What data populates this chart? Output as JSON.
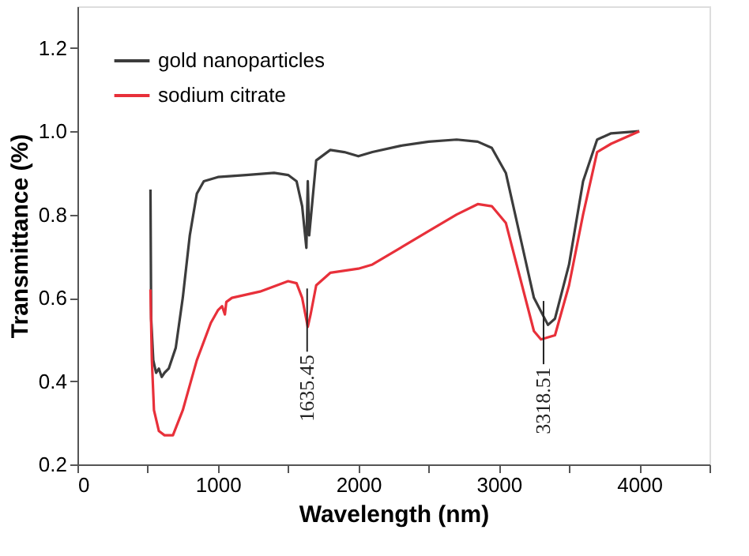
{
  "chart_data": {
    "type": "line",
    "xlabel": "Wavelength (nm)",
    "ylabel": "Transmittance (%)",
    "xlim": [
      0,
      4500
    ],
    "ylim": [
      0.2,
      1.3
    ],
    "xticks": [
      0,
      {
        "value": 500,
        "label": null
      },
      1000,
      {
        "value": 1500,
        "label": null
      },
      2000,
      {
        "value": 2500,
        "label": null
      },
      3000,
      {
        "value": 3500,
        "label": null
      },
      4000,
      {
        "value": 4500,
        "label": null
      }
    ],
    "yticks": [
      0.2,
      0.4,
      0.6,
      0.8,
      {
        "value": 1,
        "label": "1.0"
      },
      1.2
    ],
    "grid": false,
    "legend": "top left",
    "marker": "none",
    "line_style": "solid",
    "series": [
      {
        "name": "gold nanoparticles",
        "color": "#3c3c3c",
        "x": [
          520,
          525,
          540,
          560,
          580,
          600,
          620,
          650,
          700,
          750,
          800,
          850,
          900,
          1000,
          1200,
          1400,
          1500,
          1560,
          1600,
          1630,
          1640,
          1650,
          1700,
          1800,
          1900,
          2000,
          2100,
          2300,
          2500,
          2700,
          2850,
          2950,
          3050,
          3150,
          3250,
          3350,
          3400,
          3500,
          3600,
          3700,
          3800,
          4000
        ],
        "values": [
          0.86,
          0.55,
          0.45,
          0.42,
          0.43,
          0.41,
          0.42,
          0.43,
          0.48,
          0.6,
          0.75,
          0.85,
          0.88,
          0.89,
          0.895,
          0.9,
          0.895,
          0.88,
          0.82,
          0.72,
          0.88,
          0.75,
          0.93,
          0.955,
          0.95,
          0.94,
          0.95,
          0.965,
          0.975,
          0.98,
          0.975,
          0.96,
          0.9,
          0.75,
          0.6,
          0.535,
          0.55,
          0.68,
          0.88,
          0.98,
          0.995,
          1.0
        ]
      },
      {
        "name": "sodium citrate",
        "color": "#e8303a",
        "x": [
          520,
          530,
          545,
          580,
          620,
          680,
          750,
          850,
          950,
          1000,
          1030,
          1050,
          1060,
          1100,
          1300,
          1500,
          1560,
          1600,
          1640,
          1660,
          1700,
          1800,
          2000,
          2100,
          2300,
          2500,
          2700,
          2850,
          2950,
          3050,
          3150,
          3250,
          3300,
          3400,
          3500,
          3600,
          3700,
          3800,
          4000
        ],
        "values": [
          0.62,
          0.45,
          0.33,
          0.28,
          0.27,
          0.27,
          0.33,
          0.45,
          0.54,
          0.57,
          0.58,
          0.56,
          0.59,
          0.6,
          0.615,
          0.64,
          0.635,
          0.6,
          0.53,
          0.56,
          0.63,
          0.66,
          0.67,
          0.68,
          0.72,
          0.76,
          0.8,
          0.825,
          0.82,
          0.78,
          0.65,
          0.52,
          0.5,
          0.51,
          0.63,
          0.8,
          0.95,
          0.97,
          1.0
        ]
      }
    ],
    "annotations": [
      {
        "text": "1635.45",
        "x": 1635.45,
        "y": 0.53
      },
      {
        "text": "3318.51",
        "x": 3318.51,
        "y": 0.5
      }
    ]
  }
}
